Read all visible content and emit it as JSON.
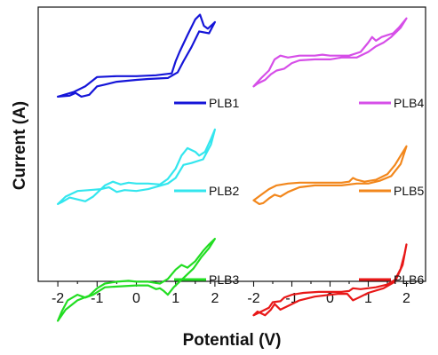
{
  "chart_data": {
    "type": "line",
    "xlabel": "Potential (V)",
    "ylabel": "Current (A)",
    "panels": [
      {
        "xlim": [
          -2.5,
          2.5
        ],
        "ticks": [
          "-2",
          "-1",
          "0",
          "1",
          "2"
        ],
        "tick_values": [
          -2,
          -1,
          0,
          1,
          2
        ],
        "series": [
          {
            "name": "PLB1",
            "color": "#1515d8",
            "forward": [
              [
                -2,
                0.22
              ],
              [
                -1.6,
                0.27
              ],
              [
                -1.3,
                0.33
              ],
              [
                -1.0,
                0.43
              ],
              [
                -0.5,
                0.44
              ],
              [
                0,
                0.44
              ],
              [
                0.5,
                0.45
              ],
              [
                0.9,
                0.47
              ],
              [
                1.0,
                0.6
              ],
              [
                1.1,
                0.7
              ],
              [
                1.3,
                0.88
              ],
              [
                1.5,
                1.05
              ],
              [
                1.62,
                1.1
              ],
              [
                1.72,
                0.98
              ],
              [
                1.82,
                0.95
              ],
              [
                1.95,
                1.0
              ],
              [
                2,
                1.02
              ]
            ],
            "reverse": [
              [
                2,
                1.02
              ],
              [
                1.85,
                0.9
              ],
              [
                1.6,
                0.92
              ],
              [
                1.4,
                0.75
              ],
              [
                1.2,
                0.6
              ],
              [
                1.05,
                0.48
              ],
              [
                0.8,
                0.42
              ],
              [
                0.3,
                0.41
              ],
              [
                0,
                0.4
              ],
              [
                -0.5,
                0.38
              ],
              [
                -0.8,
                0.35
              ],
              [
                -1.0,
                0.33
              ],
              [
                -1.2,
                0.24
              ],
              [
                -1.4,
                0.22
              ],
              [
                -1.55,
                0.26
              ],
              [
                -1.7,
                0.23
              ],
              [
                -2,
                0.22
              ]
            ]
          },
          {
            "name": "PLB2",
            "color": "#33e6ee",
            "forward": [
              [
                -2,
                0.02
              ],
              [
                -1.8,
                0.1
              ],
              [
                -1.5,
                0.16
              ],
              [
                -1.2,
                0.17
              ],
              [
                -0.9,
                0.18
              ],
              [
                -0.8,
                0.22
              ],
              [
                -0.6,
                0.26
              ],
              [
                -0.4,
                0.23
              ],
              [
                -0.2,
                0.25
              ],
              [
                0,
                0.24
              ],
              [
                0.3,
                0.24
              ],
              [
                0.6,
                0.23
              ],
              [
                0.8,
                0.29
              ],
              [
                1.0,
                0.4
              ],
              [
                1.15,
                0.54
              ],
              [
                1.3,
                0.62
              ],
              [
                1.5,
                0.58
              ],
              [
                1.6,
                0.54
              ],
              [
                1.75,
                0.58
              ],
              [
                1.9,
                0.72
              ],
              [
                2,
                0.82
              ]
            ],
            "reverse": [
              [
                2,
                0.82
              ],
              [
                1.9,
                0.66
              ],
              [
                1.7,
                0.5
              ],
              [
                1.4,
                0.46
              ],
              [
                1.2,
                0.44
              ],
              [
                1.0,
                0.3
              ],
              [
                0.8,
                0.24
              ],
              [
                0.3,
                0.18
              ],
              [
                0,
                0.16
              ],
              [
                -0.3,
                0.17
              ],
              [
                -0.5,
                0.15
              ],
              [
                -0.7,
                0.2
              ],
              [
                -0.9,
                0.18
              ],
              [
                -1.1,
                0.1
              ],
              [
                -1.3,
                0.05
              ],
              [
                -1.5,
                0.07
              ],
              [
                -1.7,
                0.09
              ],
              [
                -1.9,
                0.04
              ],
              [
                -2,
                0.02
              ]
            ]
          },
          {
            "name": "PLB3",
            "color": "#22dd22",
            "forward": [
              [
                -2,
                -0.3
              ],
              [
                -1.8,
                -0.18
              ],
              [
                -1.5,
                -0.08
              ],
              [
                -1.2,
                -0.03
              ],
              [
                -1.0,
                0.05
              ],
              [
                -0.8,
                0.1
              ],
              [
                -0.5,
                0.12
              ],
              [
                -0.2,
                0.13
              ],
              [
                0,
                0.12
              ],
              [
                0.3,
                0.12
              ],
              [
                0.6,
                0.1
              ],
              [
                0.8,
                0.15
              ],
              [
                1.0,
                0.25
              ],
              [
                1.15,
                0.3
              ],
              [
                1.3,
                0.27
              ],
              [
                1.5,
                0.34
              ],
              [
                1.7,
                0.45
              ],
              [
                1.85,
                0.52
              ],
              [
                2,
                0.58
              ]
            ],
            "reverse": [
              [
                2,
                0.58
              ],
              [
                1.85,
                0.48
              ],
              [
                1.65,
                0.38
              ],
              [
                1.45,
                0.26
              ],
              [
                1.25,
                0.18
              ],
              [
                1.1,
                0.12
              ],
              [
                0.95,
                0.06
              ],
              [
                0.8,
                -0.02
              ],
              [
                0.7,
                0.02
              ],
              [
                0.6,
                0.05
              ],
              [
                0.5,
                0.04
              ],
              [
                0.3,
                0.08
              ],
              [
                0,
                0.08
              ],
              [
                -0.4,
                0.07
              ],
              [
                -0.8,
                0.06
              ],
              [
                -1.1,
                -0.02
              ],
              [
                -1.3,
                -0.05
              ],
              [
                -1.5,
                -0.02
              ],
              [
                -1.75,
                -0.08
              ],
              [
                -1.9,
                -0.2
              ],
              [
                -2,
                -0.3
              ]
            ]
          }
        ]
      },
      {
        "xlim": [
          -2.5,
          2.5
        ],
        "ticks": [
          "-2",
          "-1",
          "0",
          "1",
          "2"
        ],
        "tick_values": [
          -2,
          -1,
          0,
          1,
          2
        ],
        "series": [
          {
            "name": "PLB4",
            "color": "#d64ee8",
            "forward": [
              [
                -2,
                0.33
              ],
              [
                -1.8,
                0.42
              ],
              [
                -1.6,
                0.5
              ],
              [
                -1.45,
                0.62
              ],
              [
                -1.3,
                0.66
              ],
              [
                -1.1,
                0.64
              ],
              [
                -0.8,
                0.66
              ],
              [
                -0.4,
                0.66
              ],
              [
                -0.2,
                0.67
              ],
              [
                0,
                0.66
              ],
              [
                0.5,
                0.66
              ],
              [
                0.8,
                0.7
              ],
              [
                1.0,
                0.8
              ],
              [
                1.1,
                0.86
              ],
              [
                1.2,
                0.82
              ],
              [
                1.35,
                0.86
              ],
              [
                1.5,
                0.88
              ],
              [
                1.65,
                0.9
              ],
              [
                1.8,
                0.96
              ],
              [
                2,
                1.06
              ]
            ],
            "reverse": [
              [
                2,
                1.06
              ],
              [
                1.85,
                0.96
              ],
              [
                1.6,
                0.86
              ],
              [
                1.4,
                0.8
              ],
              [
                1.2,
                0.76
              ],
              [
                1.0,
                0.7
              ],
              [
                0.7,
                0.64
              ],
              [
                0.3,
                0.64
              ],
              [
                0,
                0.62
              ],
              [
                -0.4,
                0.62
              ],
              [
                -0.8,
                0.61
              ],
              [
                -1.0,
                0.58
              ],
              [
                -1.2,
                0.52
              ],
              [
                -1.4,
                0.5
              ],
              [
                -1.55,
                0.46
              ],
              [
                -1.7,
                0.4
              ],
              [
                -1.9,
                0.36
              ],
              [
                -2,
                0.33
              ]
            ]
          },
          {
            "name": "PLB5",
            "color": "#f2871c",
            "forward": [
              [
                -2,
                0.06
              ],
              [
                -1.8,
                0.12
              ],
              [
                -1.6,
                0.18
              ],
              [
                -1.4,
                0.22
              ],
              [
                -1.1,
                0.24
              ],
              [
                -0.8,
                0.25
              ],
              [
                -0.4,
                0.25
              ],
              [
                0,
                0.25
              ],
              [
                0.3,
                0.25
              ],
              [
                0.5,
                0.26
              ],
              [
                0.6,
                0.3
              ],
              [
                0.7,
                0.28
              ],
              [
                0.9,
                0.26
              ],
              [
                1.2,
                0.28
              ],
              [
                1.5,
                0.34
              ],
              [
                1.7,
                0.44
              ],
              [
                1.85,
                0.54
              ],
              [
                2,
                0.64
              ]
            ],
            "reverse": [
              [
                2,
                0.64
              ],
              [
                1.85,
                0.45
              ],
              [
                1.6,
                0.32
              ],
              [
                1.3,
                0.27
              ],
              [
                1.0,
                0.24
              ],
              [
                0.7,
                0.24
              ],
              [
                0.3,
                0.22
              ],
              [
                0,
                0.22
              ],
              [
                -0.4,
                0.22
              ],
              [
                -0.8,
                0.2
              ],
              [
                -1.1,
                0.15
              ],
              [
                -1.3,
                0.1
              ],
              [
                -1.45,
                0.12
              ],
              [
                -1.6,
                0.08
              ],
              [
                -1.75,
                0.03
              ],
              [
                -1.85,
                0.02
              ],
              [
                -2,
                0.06
              ]
            ]
          },
          {
            "name": "PLB6",
            "color": "#e81818",
            "forward": [
              [
                -2,
                -0.24
              ],
              [
                -1.8,
                -0.2
              ],
              [
                -1.6,
                -0.16
              ],
              [
                -1.5,
                -0.1
              ],
              [
                -1.3,
                -0.09
              ],
              [
                -1.2,
                -0.05
              ],
              [
                -1.0,
                -0.02
              ],
              [
                -0.7,
                0.0
              ],
              [
                -0.3,
                0.01
              ],
              [
                0,
                0.01
              ],
              [
                0.3,
                0.01
              ],
              [
                0.5,
                0.02
              ],
              [
                0.6,
                0.05
              ],
              [
                0.8,
                0.04
              ],
              [
                1.2,
                0.06
              ],
              [
                1.5,
                0.09
              ],
              [
                1.7,
                0.14
              ],
              [
                1.85,
                0.26
              ],
              [
                1.95,
                0.42
              ],
              [
                2,
                0.52
              ]
            ],
            "reverse": [
              [
                2,
                0.52
              ],
              [
                1.9,
                0.3
              ],
              [
                1.7,
                0.12
              ],
              [
                1.4,
                0.05
              ],
              [
                1.0,
                0.0
              ],
              [
                0.75,
                -0.05
              ],
              [
                0.6,
                -0.08
              ],
              [
                0.45,
                -0.01
              ],
              [
                0.2,
                -0.01
              ],
              [
                0,
                -0.02
              ],
              [
                -0.4,
                -0.04
              ],
              [
                -0.8,
                -0.08
              ],
              [
                -1.1,
                -0.14
              ],
              [
                -1.3,
                -0.18
              ],
              [
                -1.45,
                -0.12
              ],
              [
                -1.55,
                -0.18
              ],
              [
                -1.7,
                -0.24
              ],
              [
                -1.8,
                -0.22
              ],
              [
                -1.9,
                -0.2
              ],
              [
                -2,
                -0.24
              ]
            ]
          }
        ]
      }
    ]
  }
}
